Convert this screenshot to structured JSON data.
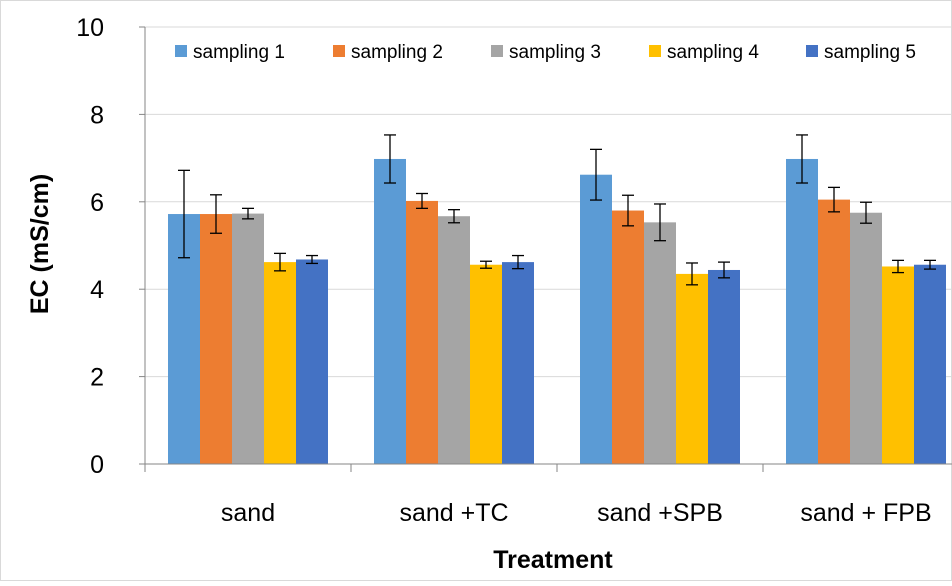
{
  "chart_data": {
    "type": "bar",
    "title": "",
    "xlabel": "Treatment",
    "ylabel": "EC (mS/cm)",
    "ylim": [
      0,
      10
    ],
    "yticks": [
      0,
      2,
      4,
      6,
      8,
      10
    ],
    "grid": true,
    "legend_position": "top",
    "categories": [
      "sand",
      "sand +TC",
      "sand +SPB",
      "sand + FPB"
    ],
    "series": [
      {
        "name": "sampling 1",
        "color": "#5B9BD5",
        "values": [
          5.72,
          6.98,
          6.62,
          6.98
        ],
        "errors": [
          1.0,
          0.55,
          0.58,
          0.55
        ]
      },
      {
        "name": "sampling 2",
        "color": "#ED7D31",
        "values": [
          5.72,
          6.02,
          5.8,
          6.05
        ],
        "errors": [
          0.44,
          0.17,
          0.35,
          0.28
        ]
      },
      {
        "name": "sampling 3",
        "color": "#A5A5A5",
        "values": [
          5.73,
          5.67,
          5.53,
          5.75
        ],
        "errors": [
          0.12,
          0.15,
          0.42,
          0.24
        ]
      },
      {
        "name": "sampling 4",
        "color": "#FFC000",
        "values": [
          4.62,
          4.56,
          4.35,
          4.52
        ],
        "errors": [
          0.2,
          0.08,
          0.25,
          0.14
        ]
      },
      {
        "name": "sampling 5",
        "color": "#4472C4",
        "values": [
          4.68,
          4.62,
          4.44,
          4.56
        ],
        "errors": [
          0.09,
          0.15,
          0.18,
          0.1
        ]
      }
    ]
  }
}
